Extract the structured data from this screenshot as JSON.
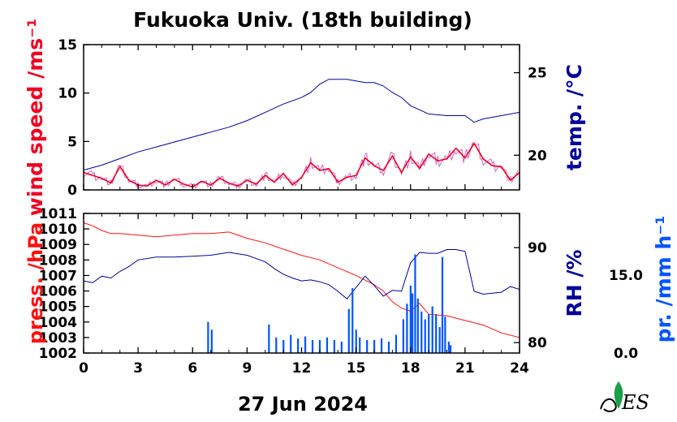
{
  "title": "Fukuoka Univ. (18th building)",
  "date": "27 Jun 2024",
  "colors": {
    "wind": "#ee0022",
    "wind_raw": "#cc66cc",
    "temp": "#000099",
    "press": "#ff1111",
    "rh": "#000099",
    "precip": "#0055ff"
  },
  "chart_data": [
    {
      "type": "line",
      "panel": "upper",
      "xlabel": "",
      "xlim": [
        0,
        24
      ],
      "x_ticks": [
        "0",
        "3",
        "6",
        "9",
        "12",
        "15",
        "18",
        "21",
        "24"
      ],
      "left_axis": {
        "label": "wind speed /ms⁻¹",
        "ylim": [
          0,
          15
        ],
        "ticks": [
          "0",
          "5",
          "10",
          "15"
        ]
      },
      "right_axis": {
        "label": "temp. /°C",
        "ylim": [
          17.9,
          26.7
        ],
        "ticks": [
          "20",
          "25"
        ]
      },
      "series": [
        {
          "axis": "left",
          "x": [
            0,
            0.5,
            1,
            1.5,
            2,
            2.5,
            3,
            3.5,
            4,
            4.5,
            5,
            5.5,
            6,
            6.5,
            7,
            7.5,
            8,
            8.5,
            9,
            9.5,
            10,
            10.5,
            11,
            11.5,
            12,
            12.5,
            13,
            13.5,
            14,
            14.5,
            15,
            15.5,
            16,
            16.5,
            17,
            17.5,
            18,
            18.5,
            19,
            19.5,
            20,
            20.5,
            21,
            21.5,
            22,
            22.5,
            23,
            23.5,
            24
          ],
          "values": [
            1.8,
            1.5,
            1.2,
            0.7,
            2.4,
            1.0,
            0.5,
            0.4,
            1.0,
            0.5,
            1.1,
            0.6,
            0.3,
            0.9,
            0.5,
            1.2,
            0.7,
            0.4,
            1.0,
            0.6,
            1.5,
            0.8,
            1.7,
            0.5,
            1.3,
            2.8,
            2.0,
            2.2,
            0.8,
            1.3,
            1.5,
            3.3,
            2.5,
            2.0,
            3.5,
            1.8,
            3.4,
            2.2,
            3.7,
            3.0,
            3.2,
            4.3,
            3.3,
            4.8,
            3.2,
            2.5,
            2.4,
            1.0,
            1.8
          ]
        },
        {
          "axis": "right",
          "x": [
            0,
            1,
            2,
            3,
            4,
            5,
            6,
            7,
            8,
            9,
            10,
            11,
            12,
            12.5,
            13,
            13.5,
            14,
            14.5,
            15,
            15.5,
            16,
            16.5,
            17,
            17.5,
            18,
            19,
            20,
            20.5,
            21,
            21.5,
            22,
            23,
            24
          ],
          "values": [
            19.1,
            19.4,
            19.8,
            20.2,
            20.5,
            20.8,
            21.1,
            21.4,
            21.7,
            22.1,
            22.6,
            23.1,
            23.5,
            23.8,
            24.3,
            24.6,
            24.6,
            24.6,
            24.5,
            24.4,
            24.4,
            24.2,
            23.8,
            23.5,
            23.0,
            22.5,
            22.4,
            22.4,
            22.4,
            22.0,
            22.2,
            22.4,
            22.6
          ]
        }
      ]
    },
    {
      "type": "line",
      "panel": "lower",
      "xlabel": "27 Jun 2024",
      "xlim": [
        0,
        24
      ],
      "x_ticks": [
        "0",
        "3",
        "6",
        "9",
        "12",
        "15",
        "18",
        "21",
        "24"
      ],
      "left_axis": {
        "label": "press. /hPa",
        "ylim": [
          1002,
          1011
        ],
        "ticks": [
          "1002",
          "1003",
          "1004",
          "1005",
          "1006",
          "1007",
          "1008",
          "1009",
          "1010",
          "1011"
        ]
      },
      "right_axis": {
        "label": "RH /%",
        "ylim": [
          78.9,
          93.6
        ],
        "ticks": [
          "80",
          "90"
        ]
      },
      "precip_axis": {
        "label": "pr. /mm h⁻¹",
        "ylim": [
          0,
          26.9
        ],
        "ticks": [
          "0.0",
          "15.0"
        ]
      },
      "series": [
        {
          "axis": "left",
          "x": [
            0,
            0.5,
            1,
            1.5,
            2,
            3,
            4,
            5,
            6,
            7,
            8,
            9,
            10,
            11,
            12,
            13,
            14,
            15,
            16,
            16.5,
            17,
            17.5,
            18,
            18.5,
            19,
            20,
            21,
            22,
            23,
            24
          ],
          "values": [
            1010.4,
            1010.2,
            1009.9,
            1009.7,
            1009.7,
            1009.6,
            1009.5,
            1009.6,
            1009.7,
            1009.7,
            1009.8,
            1009.4,
            1009.1,
            1008.7,
            1008.3,
            1008.0,
            1007.5,
            1007.0,
            1006.4,
            1006.0,
            1005.3,
            1004.9,
            1004.7,
            1005.2,
            1004.5,
            1004.4,
            1004.1,
            1003.8,
            1003.3,
            1003.0
          ]
        },
        {
          "axis": "right",
          "x": [
            0,
            0.5,
            1,
            1.5,
            2,
            2.5,
            3,
            4,
            5,
            6,
            7,
            8,
            9,
            10,
            10.5,
            11,
            11.5,
            12,
            12.5,
            13,
            13.5,
            14,
            14.5,
            15,
            15.5,
            16,
            16.5,
            17,
            17.5,
            18,
            18.5,
            19,
            19.5,
            20,
            20.5,
            21,
            21.5,
            22,
            22.5,
            23,
            23.5,
            24
          ],
          "values": [
            86.5,
            86.3,
            87.0,
            86.8,
            87.5,
            88.0,
            88.7,
            89.0,
            89.0,
            89.1,
            89.2,
            89.5,
            89.2,
            88.5,
            87.8,
            87.2,
            86.8,
            86.5,
            86.6,
            86.4,
            86.1,
            85.4,
            84.6,
            85.8,
            87.0,
            86.0,
            84.9,
            85.5,
            85.4,
            88.4,
            89.5,
            89.4,
            89.4,
            89.8,
            89.8,
            89.6,
            85.4,
            85.1,
            85.2,
            85.3,
            85.9,
            85.6
          ]
        },
        {
          "axis": "precip",
          "type": "bar",
          "x": [
            6.85,
            7.05,
            10.2,
            10.6,
            11.0,
            11.4,
            11.8,
            12.2,
            12.6,
            13.0,
            13.4,
            13.8,
            14.2,
            14.6,
            14.8,
            15.0,
            15.2,
            15.6,
            16.0,
            16.4,
            16.8,
            17.2,
            17.6,
            17.8,
            18.0,
            18.1,
            18.25,
            18.4,
            18.6,
            18.8,
            19.0,
            19.2,
            19.4,
            19.6,
            19.75,
            19.9,
            20.1,
            20.2
          ],
          "values": [
            6.0,
            4.5,
            5.5,
            3.0,
            2.5,
            3.5,
            2.8,
            3.2,
            2.5,
            2.5,
            3.0,
            2.5,
            2.2,
            8.5,
            12.5,
            4.5,
            3.0,
            2.5,
            2.5,
            2.8,
            2.2,
            3.5,
            6.5,
            9.5,
            13.0,
            11.5,
            19.0,
            10.5,
            8.0,
            6.5,
            7.5,
            9.0,
            7.5,
            5.0,
            18.5,
            7.0,
            2.2,
            1.5
          ]
        }
      ]
    }
  ]
}
